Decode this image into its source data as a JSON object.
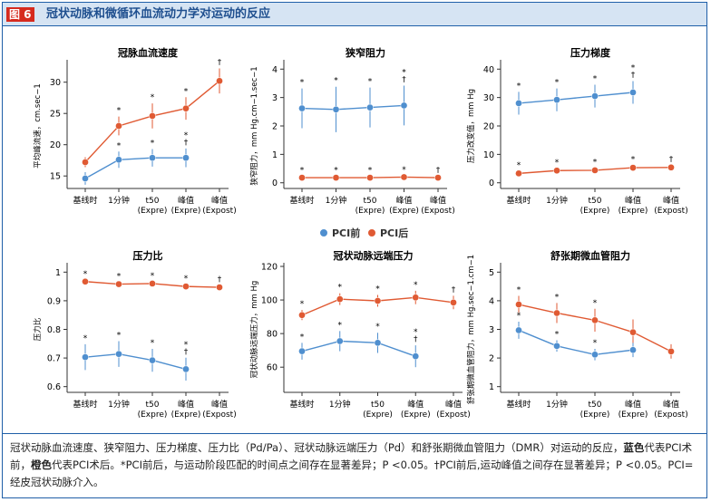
{
  "figure": {
    "tag": "图 6",
    "title": "冠状动脉和微循环血流动力学对运动的反应"
  },
  "legend": [
    {
      "name": "PCI前",
      "color": "#4f8fcf"
    },
    {
      "name": "PCI后",
      "color": "#e05a33"
    }
  ],
  "caption": {
    "part1": "冠状动脉血流速度、狭窄阻力、压力梯度、压力比（Pd/Pa）、冠状动脉远端压力（Pd）和舒张期微血管阻力（DMR）对运动的反应，",
    "blue_word": "蓝色",
    "part2": "代表PCI术前，",
    "orange_word": "橙色",
    "part3": "代表PCI术后。*PCI前后，与运动阶段匹配的时间点之间存在显著差异；P <0.05。†PCI前后,运动峰值之间存在显著差异；P <0.05。PCI=经皮冠状动脉介入。"
  },
  "colors": {
    "pre": "#4f8fcf",
    "post": "#e05a33"
  },
  "chart_data": [
    {
      "type": "line",
      "title": "冠脉血流速度",
      "ylabel": "平均峰流速，cm.sec−1",
      "categories": [
        "基线时",
        "1分钟",
        "t50\n(Expre)",
        "峰值\n(Expre)",
        "峰值\n(Expost)"
      ],
      "ylim": [
        13,
        33
      ],
      "yticks": [
        15,
        20,
        25,
        30
      ],
      "series": [
        {
          "name": "PCI后",
          "values": [
            17.2,
            23.0,
            24.6,
            25.8,
            30.2
          ],
          "err": [
            0.8,
            1.5,
            2.0,
            1.8,
            2.0
          ],
          "marks": [
            "",
            "*",
            "*",
            "*",
            "†"
          ]
        },
        {
          "name": "PCI前",
          "values": [
            14.6,
            17.6,
            17.9,
            17.9,
            null
          ],
          "err": [
            1.0,
            1.3,
            1.4,
            1.5,
            null
          ],
          "marks": [
            "",
            "*",
            "*",
            "*\n†",
            ""
          ]
        }
      ]
    },
    {
      "type": "line",
      "title": "狭窄阻力",
      "ylabel": "狭窄阻力，mm Hg.cm−1.sec−1",
      "categories": [
        "基线时",
        "1分钟",
        "t50\n(Expre)",
        "峰值\n(Expre)",
        "峰值\n(Expost)"
      ],
      "ylim": [
        -0.2,
        4.2
      ],
      "yticks": [
        0,
        1,
        2,
        3,
        4
      ],
      "series": [
        {
          "name": "PCI前",
          "values": [
            2.62,
            2.58,
            2.65,
            2.72,
            null
          ],
          "err": [
            0.7,
            0.8,
            0.7,
            0.7,
            null
          ],
          "marks": [
            "*",
            "*",
            "*",
            "*\n†",
            ""
          ]
        },
        {
          "name": "PCI后",
          "values": [
            0.18,
            0.18,
            0.18,
            0.2,
            0.18
          ],
          "err": [
            0.05,
            0.05,
            0.05,
            0.05,
            0.05
          ],
          "marks": [
            "*",
            "*",
            "*",
            "*",
            "†"
          ]
        }
      ]
    },
    {
      "type": "line",
      "title": "压力梯度",
      "ylabel": "压力改变值，mm Hg",
      "categories": [
        "基线时",
        "1分钟",
        "t50\n(Expre)",
        "峰值\n(Expre)",
        "峰值\n(Expost)"
      ],
      "ylim": [
        -2,
        42
      ],
      "yticks": [
        0,
        10,
        20,
        30,
        40
      ],
      "series": [
        {
          "name": "PCI前",
          "values": [
            28.0,
            29.2,
            30.5,
            31.8,
            null
          ],
          "err": [
            4.0,
            4.0,
            4.0,
            4.0,
            null
          ],
          "marks": [
            "*",
            "*",
            "*",
            "*\n†",
            ""
          ]
        },
        {
          "name": "PCI后",
          "values": [
            3.3,
            4.3,
            4.4,
            5.3,
            5.4
          ],
          "err": [
            0.7,
            0.7,
            0.7,
            0.8,
            0.8
          ],
          "marks": [
            "*",
            "*",
            "*",
            "*",
            "†"
          ]
        }
      ]
    },
    {
      "type": "line",
      "title": "压力比",
      "ylabel": "压力比",
      "categories": [
        "基线时",
        "1分钟",
        "t50\n(Expre)",
        "峰值\n(Expre)",
        "峰值\n(Expost)"
      ],
      "ylim": [
        0.58,
        1.02
      ],
      "yticks": [
        0.6,
        0.7,
        0.8,
        0.9,
        1.0
      ],
      "series": [
        {
          "name": "PCI后",
          "values": [
            0.967,
            0.958,
            0.96,
            0.95,
            0.947
          ],
          "err": [
            0.006,
            0.006,
            0.006,
            0.007,
            0.007
          ],
          "marks": [
            "*",
            "*",
            "*",
            "*",
            "†"
          ]
        },
        {
          "name": "PCI前",
          "values": [
            0.703,
            0.714,
            0.692,
            0.661,
            null
          ],
          "err": [
            0.045,
            0.045,
            0.04,
            0.04,
            null
          ],
          "marks": [
            "*",
            "*",
            "*",
            "*\n†",
            ""
          ]
        }
      ]
    },
    {
      "type": "line",
      "title": "冠状动脉远端压力",
      "ylabel": "冠状动脉远端压力，mm Hg",
      "categories": [
        "基线时",
        "1分钟",
        "t50\n(Expre)",
        "峰值\n(Expre)",
        "峰值\n(Expost)"
      ],
      "ylim": [
        45,
        120
      ],
      "yticks": [
        60,
        80,
        100,
        120
      ],
      "series": [
        {
          "name": "PCI后",
          "values": [
            91,
            100.5,
            99.5,
            101.5,
            98.5
          ],
          "err": [
            3,
            3.5,
            3.5,
            4,
            4
          ],
          "marks": [
            "*",
            "*",
            "*",
            "*",
            "†"
          ]
        },
        {
          "name": "PCI前",
          "values": [
            69.5,
            75.5,
            74.5,
            66.5,
            null
          ],
          "err": [
            5,
            6,
            6,
            6.5,
            null
          ],
          "marks": [
            "*",
            "*",
            "*",
            "*\n†",
            ""
          ]
        }
      ]
    },
    {
      "type": "line",
      "title": "舒张期微血管阻力",
      "ylabel": "舒张期微血管阻力，mm Hg.sec−1.cm−1",
      "categories": [
        "基线时",
        "1分钟",
        "t50\n(Expre)",
        "峰值\n(Expre)",
        "峰值\n(Expost)"
      ],
      "ylim": [
        0.8,
        5.2
      ],
      "yticks": [
        1,
        2,
        3,
        4,
        5
      ],
      "series": [
        {
          "name": "PCI后",
          "values": [
            3.87,
            3.57,
            3.32,
            2.9,
            2.23
          ],
          "err": [
            0.3,
            0.35,
            0.4,
            0.45,
            0.25
          ],
          "marks": [
            "*",
            "*",
            "*",
            "",
            ""
          ]
        },
        {
          "name": "PCI前",
          "values": [
            2.97,
            2.42,
            2.12,
            2.28,
            null
          ],
          "err": [
            0.3,
            0.2,
            0.2,
            0.25,
            null
          ],
          "marks": [
            "*",
            "*",
            "*",
            "",
            ""
          ]
        }
      ]
    }
  ]
}
